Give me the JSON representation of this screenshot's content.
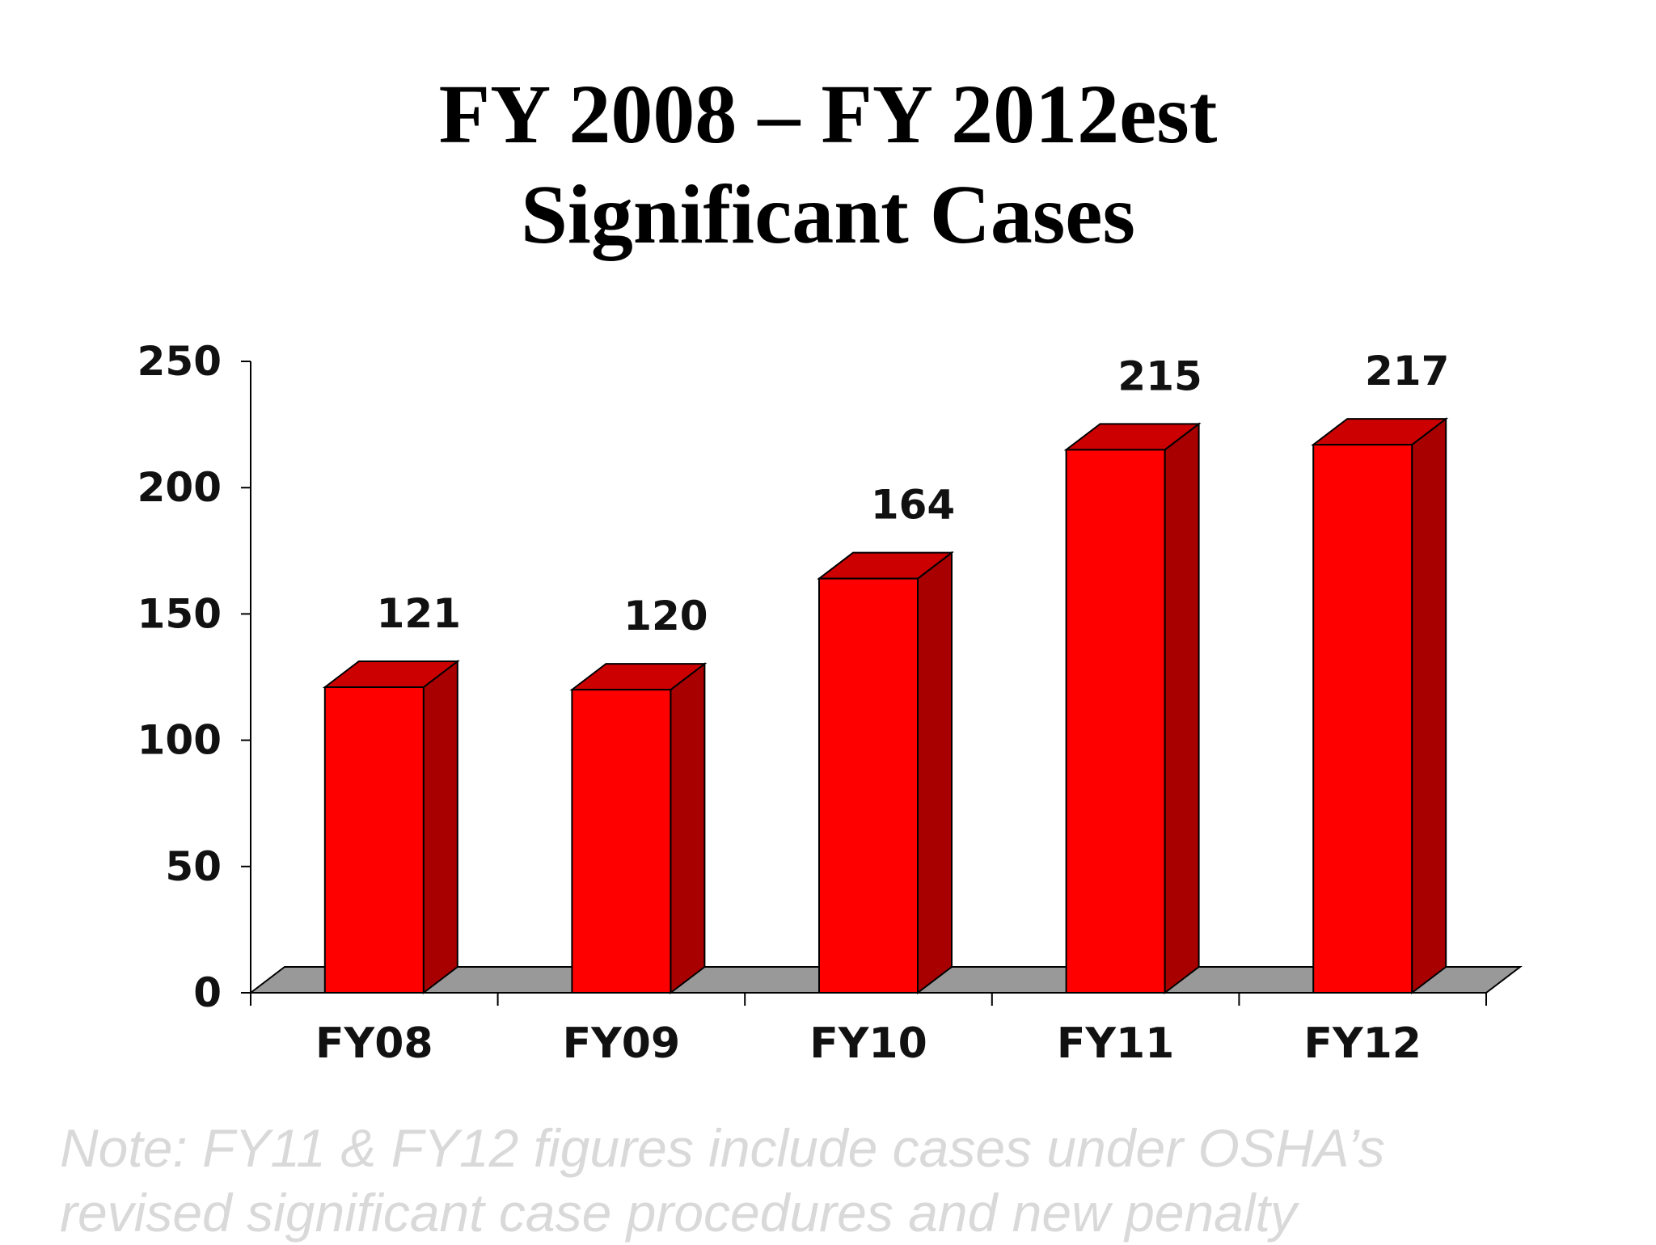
{
  "slide": {
    "title_line1": "FY 2008 – FY 2012est",
    "title_line2": "Significant Cases",
    "note_line1": "Note:  FY11 & FY12 figures include cases under OSHA’s",
    "note_line2": "revised significant case procedures and new penalty"
  },
  "colors": {
    "bar_front": "#ff0000",
    "bar_side": "#a80000",
    "bar_top": "#cc0000",
    "floor": "#999999"
  },
  "chart_data": {
    "type": "bar",
    "categories": [
      "FY08",
      "FY09",
      "FY10",
      "FY11",
      "FY12"
    ],
    "values": [
      121,
      120,
      164,
      215,
      217
    ],
    "data_labels": [
      "121",
      "120",
      "164",
      "215",
      "217"
    ],
    "title": "FY 2008 – FY 2012est Significant Cases",
    "xlabel": "",
    "ylabel": "",
    "ylim": [
      0,
      250
    ],
    "yticks": [
      0,
      50,
      100,
      150,
      200,
      250
    ],
    "grid": false,
    "legend": "none",
    "style": "3d"
  }
}
